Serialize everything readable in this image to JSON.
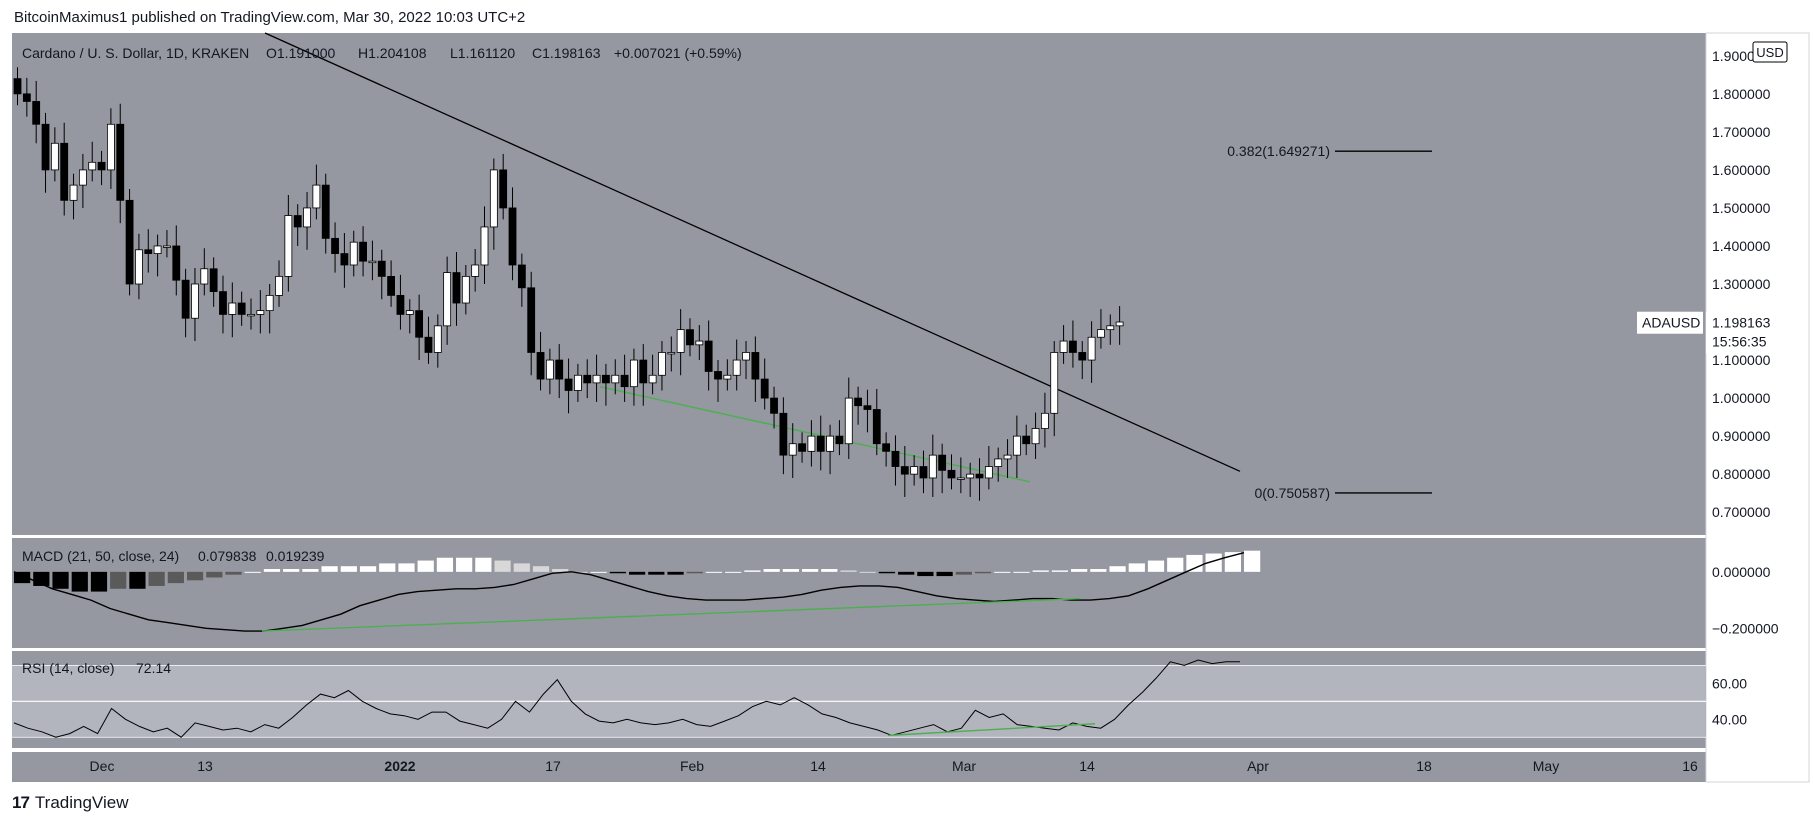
{
  "header": {
    "text": "BitcoinMaximus1 published on TradingView.com, Mar 30, 2022 10:03 UTC+2"
  },
  "footer": {
    "brand": "TradingView"
  },
  "colors": {
    "panel": "#9598a1",
    "band": "#b2b5be",
    "up": "#ffffff",
    "down": "#000000",
    "green": "#4caf50",
    "axisbg": "#ffffff"
  },
  "chart_data": [
    {
      "type": "candlestick",
      "legend": {
        "symbol": "Cardano / U. S. Dollar, 1D, KRAKEN",
        "o": "O1.191000",
        "h": "H1.204108",
        "l": "L1.161120",
        "c": "C1.198163",
        "chg": "+0.007021 (+0.59%)"
      },
      "currency": "USD",
      "y_ticks": [
        "1.900000",
        "1.800000",
        "1.700000",
        "1.600000",
        "1.500000",
        "1.400000",
        "1.300000",
        "1.200000",
        "1.100000",
        "1.000000",
        "0.900000",
        "0.800000",
        "0.700000"
      ],
      "ylim": [
        0.64,
        1.96
      ],
      "x_ticks": [
        "Dec",
        "13",
        "2022",
        "17",
        "Feb",
        "14",
        "Mar",
        "14",
        "Apr",
        "18",
        "May",
        "16"
      ],
      "last_price": {
        "label": "ADAUSD",
        "value": "1.198163",
        "countdown": "15:56:35"
      },
      "fib": [
        {
          "label": "0.382(1.649271)",
          "value": 1.649271
        },
        {
          "label": "0(0.750587)",
          "value": 0.750587
        }
      ],
      "trendline": {
        "from": {
          "day": 0,
          "price": 1.99
        },
        "to": {
          "day": 116,
          "price": 0.86
        }
      },
      "support_line": {
        "from": {
          "day": 61,
          "price": 1.02
        },
        "to": {
          "day": 98,
          "price": 0.78
        }
      },
      "close": [
        1.8,
        1.78,
        1.72,
        1.6,
        1.67,
        1.52,
        1.56,
        1.6,
        1.62,
        1.6,
        1.72,
        1.52,
        1.3,
        1.39,
        1.38,
        1.4,
        1.4,
        1.31,
        1.21,
        1.3,
        1.34,
        1.28,
        1.22,
        1.25,
        1.22,
        1.22,
        1.23,
        1.27,
        1.32,
        1.48,
        1.45,
        1.5,
        1.56,
        1.42,
        1.38,
        1.35,
        1.41,
        1.36,
        1.36,
        1.32,
        1.27,
        1.22,
        1.23,
        1.16,
        1.12,
        1.19,
        1.33,
        1.25,
        1.32,
        1.35,
        1.45,
        1.6,
        1.5,
        1.35,
        1.29,
        1.12,
        1.05,
        1.1,
        1.05,
        1.02,
        1.06,
        1.04,
        1.06,
        1.04,
        1.06,
        1.03,
        1.1,
        1.04,
        1.06,
        1.12,
        1.12,
        1.18,
        1.14,
        1.15,
        1.07,
        1.05,
        1.06,
        1.1,
        1.12,
        1.05,
        1.0,
        0.96,
        0.85,
        0.88,
        0.86,
        0.9,
        0.86,
        0.9,
        0.88,
        1.0,
        0.98,
        0.97,
        0.88,
        0.86,
        0.82,
        0.8,
        0.82,
        0.79,
        0.85,
        0.81,
        0.79,
        0.79,
        0.8,
        0.79,
        0.82,
        0.84,
        0.85,
        0.9,
        0.88,
        0.92,
        0.96,
        1.12,
        1.15,
        1.12,
        1.1,
        1.16,
        1.18,
        1.19,
        1.2
      ],
      "macd": {
        "legend": "MACD (21, 50, close, 24)",
        "value1": "0.079838",
        "value2": "0.019239",
        "y_ticks": [
          "0.000000",
          "−0.200000"
        ],
        "ylim": [
          -0.27,
          0.12
        ],
        "line": [
          0.0,
          -0.03,
          -0.06,
          -0.08,
          -0.1,
          -0.13,
          -0.15,
          -0.17,
          -0.18,
          -0.19,
          -0.2,
          -0.205,
          -0.21,
          -0.21,
          -0.2,
          -0.19,
          -0.17,
          -0.15,
          -0.12,
          -0.1,
          -0.08,
          -0.07,
          -0.065,
          -0.06,
          -0.06,
          -0.055,
          -0.045,
          -0.025,
          -0.005,
          0.0,
          -0.01,
          -0.03,
          -0.05,
          -0.07,
          -0.085,
          -0.095,
          -0.1,
          -0.1,
          -0.1,
          -0.095,
          -0.09,
          -0.08,
          -0.065,
          -0.055,
          -0.05,
          -0.05,
          -0.055,
          -0.07,
          -0.085,
          -0.095,
          -0.1,
          -0.105,
          -0.1,
          -0.095,
          -0.095,
          -0.1,
          -0.1,
          -0.095,
          -0.085,
          -0.06,
          -0.03,
          0.0,
          0.03,
          0.05,
          0.068
        ],
        "hist": [
          -0.04,
          -0.05,
          -0.06,
          -0.07,
          -0.07,
          -0.06,
          -0.06,
          -0.05,
          -0.04,
          -0.03,
          -0.02,
          -0.01,
          0.0,
          0.01,
          0.01,
          0.01,
          0.02,
          0.02,
          0.02,
          0.03,
          0.03,
          0.04,
          0.05,
          0.05,
          0.05,
          0.04,
          0.03,
          0.02,
          0.01,
          0.0,
          0.0,
          -0.005,
          -0.01,
          -0.01,
          -0.01,
          -0.005,
          0.0,
          0.0,
          0.005,
          0.01,
          0.01,
          0.01,
          0.01,
          0.005,
          0.0,
          -0.005,
          -0.01,
          -0.015,
          -0.015,
          -0.01,
          -0.005,
          0.0,
          0.0,
          0.005,
          0.005,
          0.01,
          0.01,
          0.02,
          0.03,
          0.04,
          0.05,
          0.06,
          0.065,
          0.07,
          0.075
        ]
      },
      "rsi": {
        "legend": "RSI (14, close)",
        "value": "72.14",
        "y_ticks": [
          "60.00",
          "40.00"
        ],
        "ylim": [
          24,
          78
        ],
        "bands": [
          70,
          50,
          30
        ],
        "line": [
          38,
          35,
          33,
          30,
          32,
          36,
          32,
          46,
          40,
          36,
          33,
          35,
          30,
          38,
          36,
          34,
          35,
          33,
          37,
          35,
          41,
          48,
          54,
          52,
          56,
          50,
          46,
          43,
          42,
          40,
          44,
          44,
          39,
          37,
          35,
          40,
          50,
          44,
          54,
          62,
          50,
          43,
          39,
          38,
          40,
          38,
          37,
          38,
          40,
          37,
          36,
          39,
          42,
          47,
          50,
          48,
          52,
          48,
          43,
          41,
          38,
          36,
          34,
          31,
          33,
          35,
          37,
          33,
          35,
          45,
          41,
          43,
          37,
          36,
          35,
          34,
          38,
          36,
          35,
          40,
          48,
          55,
          63,
          72,
          70,
          73,
          71,
          72,
          72
        ]
      }
    }
  ]
}
